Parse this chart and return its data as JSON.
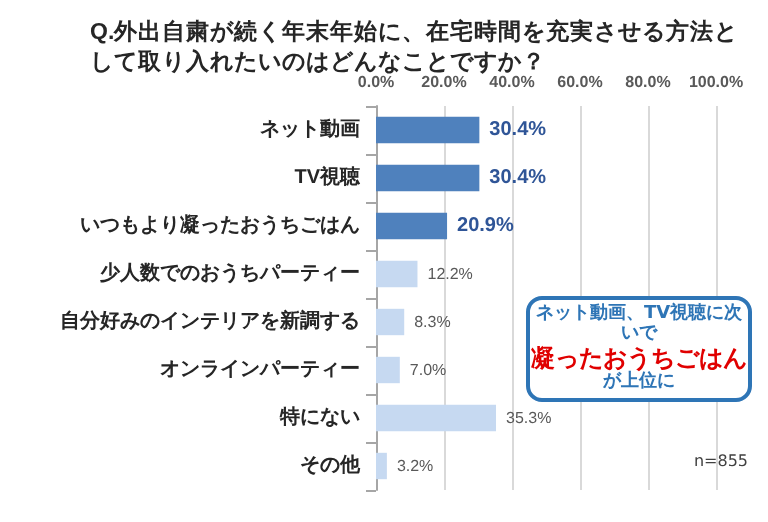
{
  "chart_data": {
    "type": "bar",
    "orientation": "horizontal",
    "title": "Q.外出自粛が続く年末年始に、在宅時間を充実させる方法として取り入れたいのはどんなことですか？",
    "categories": [
      "ネット動画",
      "TV視聴",
      "いつもより凝ったおうちごはん",
      "少人数でのおうちパーティー",
      "自分好みのインテリアを新調する",
      "オンラインパーティー",
      "特にない",
      "その他"
    ],
    "values": [
      30.4,
      30.4,
      20.9,
      12.2,
      8.3,
      7.0,
      35.3,
      3.2
    ],
    "colors": [
      "#4f81bd",
      "#4f81bd",
      "#4f81bd",
      "#c6d9f1",
      "#c6d9f1",
      "#c6d9f1",
      "#c6d9f1",
      "#c6d9f1"
    ],
    "xlim": [
      0,
      100
    ],
    "xticks": [
      {
        "value": 0,
        "label": "0.0%"
      },
      {
        "value": 20,
        "label": "20.0%"
      },
      {
        "value": 40,
        "label": "40.0%"
      },
      {
        "value": 60,
        "label": "60.0%"
      },
      {
        "value": 80,
        "label": "80.0%"
      },
      {
        "value": 100,
        "label": "100.0%"
      }
    ],
    "value_labels": [
      "30.4%",
      "30.4%",
      "20.9%",
      "12.2%",
      "8.3%",
      "7.0%",
      "35.3%",
      "3.2%"
    ],
    "grid": "x",
    "annotations": [
      "ネット動画、TV視聴に次いで",
      "凝ったおうちごはん",
      "が上位に",
      "n=855"
    ]
  }
}
